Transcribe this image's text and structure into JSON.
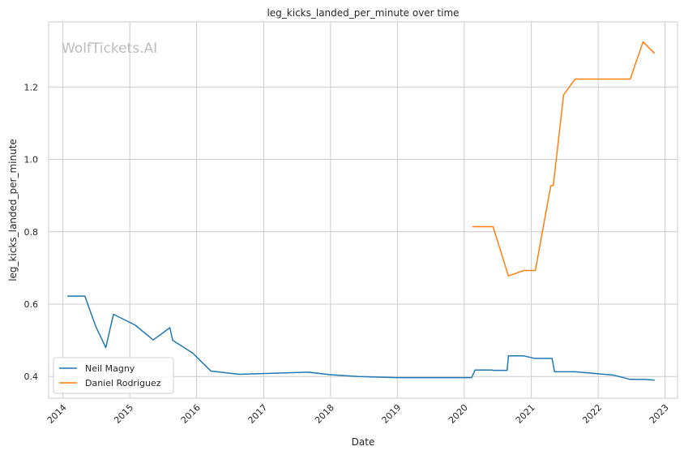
{
  "watermark": "WolfTickets.AI",
  "chart_data": {
    "type": "line",
    "title": "leg_kicks_landed_per_minute over time",
    "xlabel": "Date",
    "ylabel": "leg_kicks_landed_per_minute",
    "x_ticks": [
      "2014",
      "2015",
      "2016",
      "2017",
      "2018",
      "2019",
      "2020",
      "2021",
      "2022",
      "2023"
    ],
    "y_ticks": [
      "0.4",
      "0.6",
      "0.8",
      "1.0",
      "1.2"
    ],
    "xlim": [
      "2013-10-15",
      "2023-03-10"
    ],
    "ylim": [
      0.34,
      1.38
    ],
    "grid": true,
    "legend_position": "lower-left",
    "series": [
      {
        "name": "Neil Magny",
        "color": "#1f77b4",
        "points": [
          [
            "2014-01-25",
            0.622
          ],
          [
            "2014-05-01",
            0.622
          ],
          [
            "2014-06-28",
            0.54
          ],
          [
            "2014-08-23",
            0.48
          ],
          [
            "2014-10-04",
            0.572
          ],
          [
            "2015-01-31",
            0.542
          ],
          [
            "2015-05-09",
            0.501
          ],
          [
            "2015-08-08",
            0.535
          ],
          [
            "2015-08-23",
            0.5
          ],
          [
            "2015-12-10",
            0.465
          ],
          [
            "2016-03-19",
            0.415
          ],
          [
            "2016-08-20",
            0.406
          ],
          [
            "2017-09-02",
            0.412
          ],
          [
            "2017-12-30",
            0.405
          ],
          [
            "2018-06-01",
            0.4
          ],
          [
            "2018-12-29",
            0.397
          ],
          [
            "2020-02-10",
            0.397
          ],
          [
            "2020-02-29",
            0.418
          ],
          [
            "2020-05-30",
            0.418
          ],
          [
            "2020-06-05",
            0.417
          ],
          [
            "2020-08-22",
            0.417
          ],
          [
            "2020-08-29",
            0.457
          ],
          [
            "2020-11-21",
            0.457
          ],
          [
            "2021-01-20",
            0.45
          ],
          [
            "2021-04-24",
            0.45
          ],
          [
            "2021-05-08",
            0.413
          ],
          [
            "2021-08-28",
            0.413
          ],
          [
            "2022-03-26",
            0.404
          ],
          [
            "2022-06-25",
            0.392
          ],
          [
            "2022-09-15",
            0.392
          ],
          [
            "2022-11-05",
            0.39
          ]
        ]
      },
      {
        "name": "Daniel Rodriguez",
        "color": "#ff7f0e",
        "points": [
          [
            "2020-02-15",
            0.814
          ],
          [
            "2020-06-06",
            0.814
          ],
          [
            "2020-08-29",
            0.678
          ],
          [
            "2020-11-21",
            0.693
          ],
          [
            "2021-01-23",
            0.693
          ],
          [
            "2021-04-17",
            0.927
          ],
          [
            "2021-05-01",
            0.928
          ],
          [
            "2021-06-26",
            1.178
          ],
          [
            "2021-08-28",
            1.222
          ],
          [
            "2022-06-25",
            1.222
          ],
          [
            "2022-09-03",
            1.325
          ],
          [
            "2022-11-05",
            1.293
          ]
        ]
      }
    ]
  }
}
